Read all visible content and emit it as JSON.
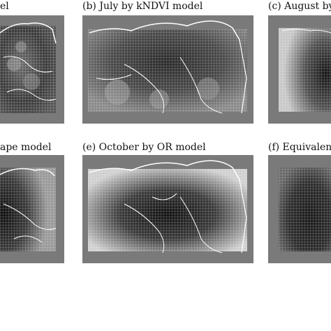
{
  "panels": [
    {
      "id": "a",
      "caption": "el"
    },
    {
      "id": "b",
      "caption": "(b) July by kNDVI model"
    },
    {
      "id": "c",
      "caption": "(c) August by"
    },
    {
      "id": "d",
      "caption": "ape model"
    },
    {
      "id": "e",
      "caption": "(e) October by OR model"
    },
    {
      "id": "f",
      "caption": "(f) Equivalence"
    }
  ]
}
